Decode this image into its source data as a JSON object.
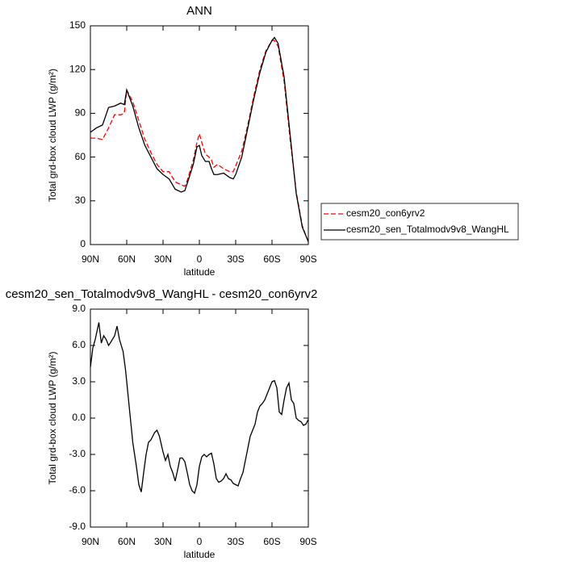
{
  "chart_data": [
    {
      "type": "line",
      "title": "ANN",
      "xlabel": "latitude",
      "ylabel": "Total grd-box cloud LWP (g/m²)",
      "x": [
        90,
        85,
        80,
        75,
        70,
        65,
        62,
        60,
        55,
        50,
        45,
        40,
        35,
        30,
        25,
        20,
        15,
        12,
        10,
        5,
        2,
        0,
        -2,
        -5,
        -8,
        -10,
        -12,
        -15,
        -20,
        -25,
        -28,
        -30,
        -35,
        -40,
        -45,
        -50,
        -55,
        -60,
        -62,
        -65,
        -70,
        -75,
        -80,
        -85,
        -88,
        -90
      ],
      "series": [
        {
          "name": "cesm20_con6yrv2",
          "color": "#ff0000",
          "line_style": "dashed",
          "values": [
            73,
            73,
            72,
            80,
            89,
            89,
            90,
            106,
            98,
            85,
            72,
            63,
            55,
            50,
            50,
            43,
            41,
            40,
            44,
            58,
            70,
            76,
            70,
            62,
            60,
            58,
            53,
            55,
            52,
            50,
            50,
            54,
            64,
            82,
            102,
            120,
            133,
            140,
            140,
            136,
            112,
            72,
            36,
            13,
            6,
            2
          ]
        },
        {
          "name": "cesm20_sen_Totalmodv9v8_WangHL",
          "color": "#000000",
          "line_style": "solid",
          "values": [
            77,
            80,
            82,
            94,
            95,
            97,
            96,
            106,
            95,
            80,
            68,
            60,
            52,
            48,
            45,
            38,
            36,
            37,
            42,
            55,
            67,
            68,
            61,
            57,
            57,
            52,
            48,
            48,
            49,
            46,
            45,
            48,
            60,
            80,
            100,
            118,
            132,
            140,
            142,
            138,
            115,
            75,
            35,
            12,
            6,
            2
          ]
        }
      ],
      "xlim": [
        90,
        -90
      ],
      "xticks": [
        {
          "value": 90,
          "label": "90N"
        },
        {
          "value": 60,
          "label": "60N"
        },
        {
          "value": 30,
          "label": "30N"
        },
        0,
        {
          "value": -30,
          "label": "30S"
        },
        {
          "value": -60,
          "label": "60S"
        },
        {
          "value": -90,
          "label": "90S"
        }
      ],
      "ylim": [
        0,
        150
      ],
      "yticks": [
        0,
        30,
        60,
        90,
        120,
        150
      ],
      "legend_position": "right"
    },
    {
      "type": "line",
      "title": "cesm20_sen_Totalmodv9v8_WangHL - cesm20_con6yrv2",
      "xlabel": "latitude",
      "ylabel": "Total grd-box cloud LWP (g/m²)",
      "x": [
        90,
        88,
        86,
        83,
        81,
        79,
        77,
        75,
        73,
        70,
        68,
        66,
        63,
        61,
        58,
        55,
        52,
        50,
        48,
        46,
        44,
        42,
        40,
        37,
        35,
        33,
        30,
        28,
        26,
        24,
        22,
        20,
        18,
        16,
        14,
        12,
        10,
        8,
        6,
        4,
        2,
        0,
        -2,
        -4,
        -6,
        -8,
        -10,
        -12,
        -14,
        -16,
        -18,
        -20,
        -22,
        -24,
        -26,
        -28,
        -30,
        -32,
        -34,
        -36,
        -38,
        -40,
        -42,
        -44,
        -46,
        -48,
        -50,
        -52,
        -54,
        -56,
        -58,
        -60,
        -62,
        -64,
        -66,
        -68,
        -70,
        -72,
        -74,
        -76,
        -78,
        -80,
        -82,
        -84,
        -86,
        -88,
        -90
      ],
      "values": [
        4.2,
        5.8,
        6.5,
        7.9,
        6.2,
        6.8,
        6.5,
        6.0,
        6.3,
        6.8,
        7.6,
        6.5,
        5.5,
        4.0,
        1.0,
        -2.0,
        -4.0,
        -5.5,
        -6.1,
        -4.5,
        -3.0,
        -2.0,
        -1.8,
        -1.2,
        -1.0,
        -1.5,
        -2.8,
        -3.5,
        -3.0,
        -4.0,
        -4.5,
        -5.2,
        -4.3,
        -3.3,
        -3.3,
        -3.6,
        -4.5,
        -5.5,
        -6.0,
        -6.2,
        -5.5,
        -4.0,
        -3.2,
        -3.0,
        -3.2,
        -3.0,
        -2.9,
        -3.8,
        -5.0,
        -5.3,
        -5.2,
        -5.0,
        -4.6,
        -5.0,
        -5.1,
        -5.4,
        -5.5,
        -5.6,
        -5.0,
        -4.5,
        -3.5,
        -2.5,
        -1.5,
        -1.0,
        -0.5,
        0.5,
        1.0,
        1.2,
        1.5,
        2.0,
        2.5,
        3.0,
        3.1,
        2.5,
        0.5,
        0.3,
        1.5,
        2.5,
        2.9,
        1.5,
        1.2,
        0.0,
        -0.2,
        -0.3,
        -0.6,
        -0.5,
        -0.1
      ],
      "color": "#000000",
      "xlim": [
        90,
        -90
      ],
      "xticks": [
        {
          "value": 90,
          "label": "90N"
        },
        {
          "value": 60,
          "label": "60N"
        },
        {
          "value": 30,
          "label": "30N"
        },
        0,
        {
          "value": -30,
          "label": "30S"
        },
        {
          "value": -60,
          "label": "60S"
        },
        {
          "value": -90,
          "label": "90S"
        }
      ],
      "ylim": [
        -9,
        9
      ],
      "yticks": [
        {
          "value": -9,
          "label": "-9.0"
        },
        {
          "value": -6,
          "label": "-6.0"
        },
        {
          "value": -3,
          "label": "-3.0"
        },
        {
          "value": 0,
          "label": "0.0"
        },
        {
          "value": 3,
          "label": "3.0"
        },
        {
          "value": 6,
          "label": "6.0"
        },
        {
          "value": 9,
          "label": "9.0"
        }
      ]
    }
  ]
}
